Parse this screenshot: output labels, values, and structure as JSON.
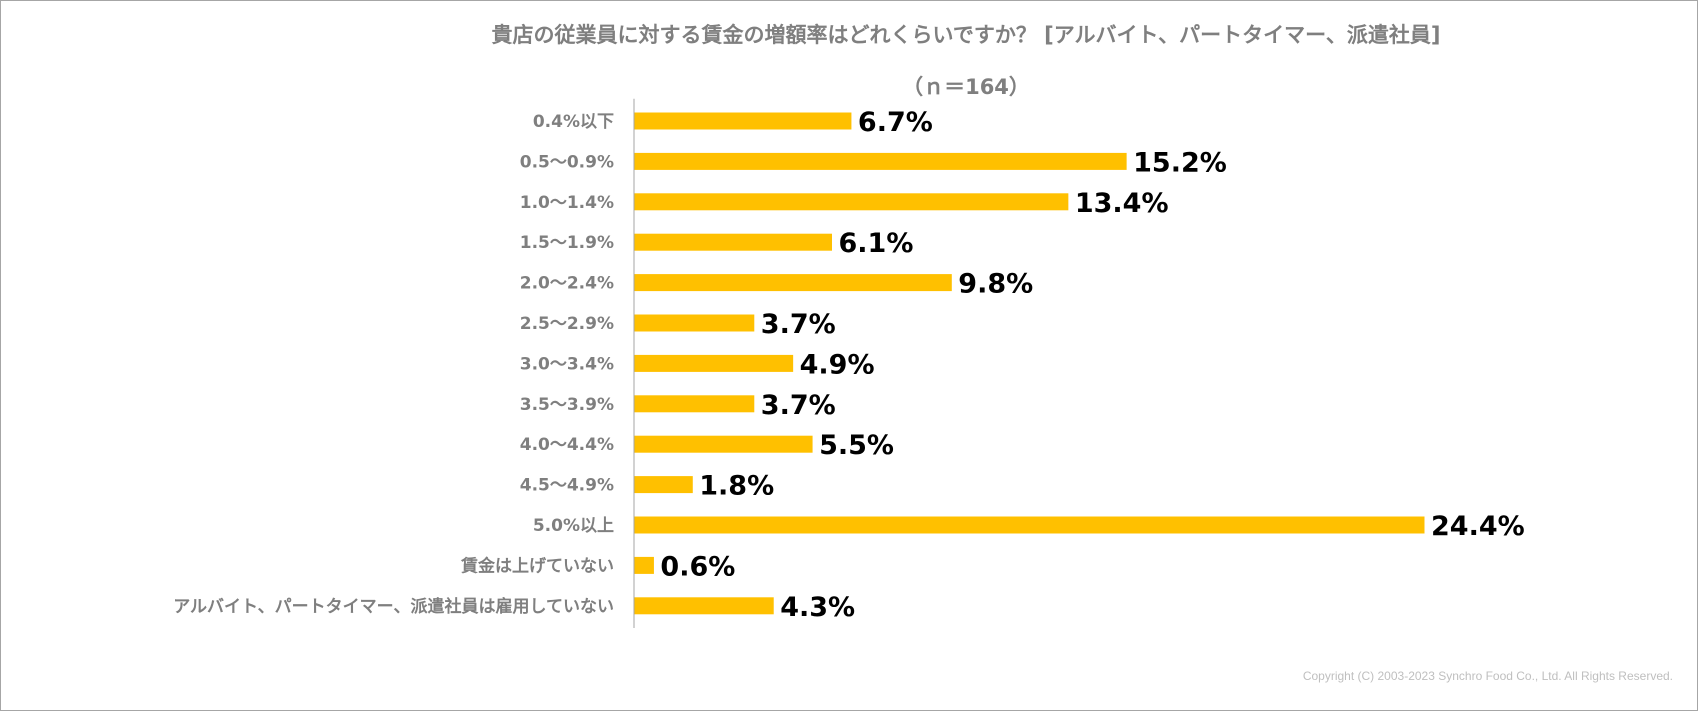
{
  "chart_data": {
    "type": "bar",
    "orientation": "horizontal",
    "title": "貴店の従業員に対する賃金の増額率はどれくらいですか？ [アルバイト、パートタイマー、派遣社員]",
    "subtitle": "（ｎ＝164）",
    "categories": [
      "0.4%以下",
      "0.5～0.9%",
      "1.0～1.4%",
      "1.5～1.9%",
      "2.0～2.4%",
      "2.5～2.9%",
      "3.0～3.4%",
      "3.5～3.9%",
      "4.0～4.4%",
      "4.5～4.9%",
      "5.0%以上",
      "賃金は上げていない",
      "アルバイト、パートタイマー、派遣社員は雇用していない"
    ],
    "values": [
      6.7,
      15.2,
      13.4,
      6.1,
      9.8,
      3.7,
      4.9,
      3.7,
      5.5,
      1.8,
      24.4,
      0.6,
      4.3
    ],
    "value_labels": [
      "6.7%",
      "15.2%",
      "13.4%",
      "6.1%",
      "9.8%",
      "3.7%",
      "4.9%",
      "3.7%",
      "5.5%",
      "1.8%",
      "24.4%",
      "0.6%",
      "4.3%"
    ],
    "unit": "%",
    "xlim": [
      0,
      24.4
    ],
    "grid": false,
    "legend": "none",
    "bar_color": "#ffc000"
  },
  "footer": {
    "copyright": "Copyright (C) 2003-2023   Synchro Food Co., Ltd. All Rights Reserved."
  }
}
